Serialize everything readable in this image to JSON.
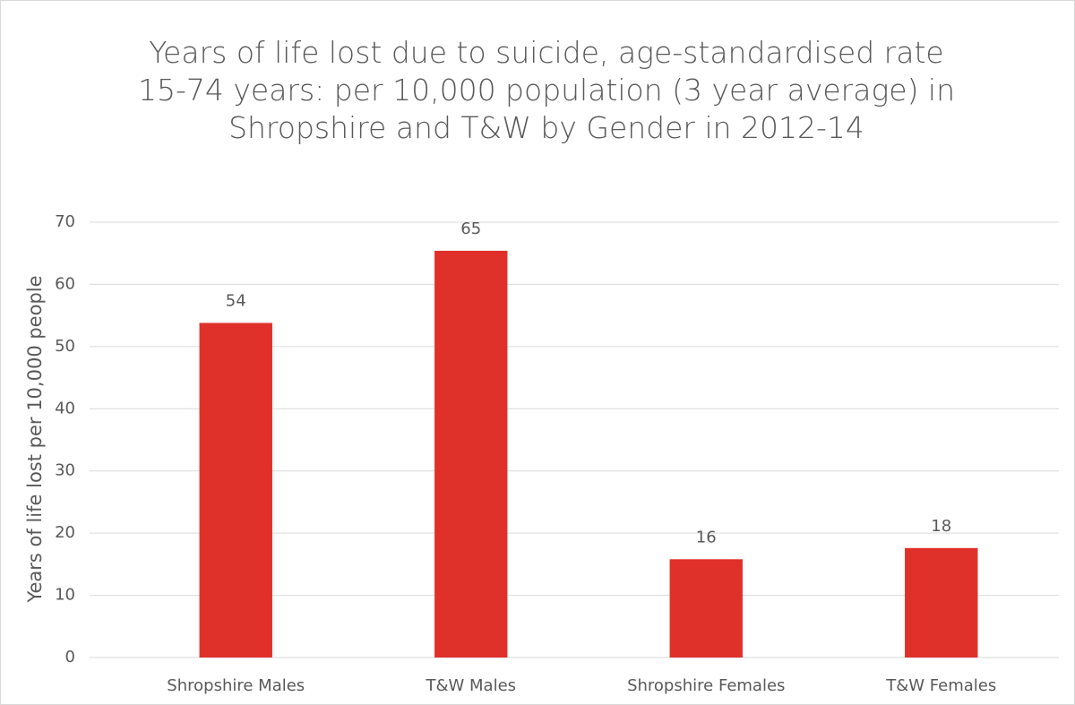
{
  "chart_data": {
    "type": "bar",
    "title": "Years of life lost due to suicide, age-standardised rate 15-74 years: per 10,000 population (3 year average) in Shropshire and T&W by Gender in 2012-14",
    "y_label": "Years of life lost per 10,000 people",
    "categories": [
      "Shropshire Males",
      "T&W Males",
      "Shropshire Females",
      "T&W Females"
    ],
    "values": [
      53.8,
      65.4,
      15.8,
      17.6
    ],
    "value_labels": [
      "54",
      "65",
      "16",
      "18"
    ],
    "color": "#e0302a",
    "ylim": [
      0,
      70
    ],
    "yticks": [
      0,
      10,
      20,
      30,
      40,
      50,
      60,
      70
    ],
    "grid": true
  }
}
